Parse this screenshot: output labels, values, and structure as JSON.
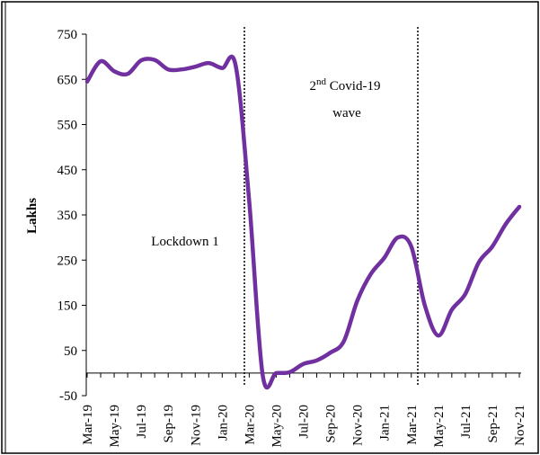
{
  "chart_data": {
    "type": "line",
    "y_label": "Lakhs",
    "categories": [
      "Mar-19",
      null,
      "May-19",
      null,
      "Jul-19",
      null,
      "Sep-19",
      null,
      "Nov-19",
      null,
      "Jan-20",
      null,
      "Mar-20",
      null,
      "May-20",
      null,
      "Jul-20",
      null,
      "Sep-20",
      null,
      "Nov-20",
      null,
      "Jan-21",
      null,
      "Mar-21",
      null,
      "May-21",
      null,
      "Jul-21",
      null,
      "Sep-21",
      null,
      "Nov-21"
    ],
    "series": [
      {
        "name": "Lakhs",
        "color": "#7030a0",
        "values": [
          645,
          690,
          668,
          662,
          692,
          693,
          672,
          672,
          678,
          686,
          675,
          680,
          380,
          -5,
          0,
          2,
          20,
          28,
          45,
          70,
          160,
          219,
          255,
          300,
          280,
          150,
          83,
          140,
          175,
          245,
          280,
          330,
          368
        ]
      }
    ],
    "ylim": [
      -50,
      750
    ],
    "yticks": [
      -50,
      50,
      150,
      250,
      350,
      450,
      550,
      650,
      750
    ],
    "annotations": {
      "lockdown": "Lockdown 1",
      "wave_number": "2",
      "wave_suffix": "nd",
      "wave_text": " Covid-19",
      "wave_line2": "wave"
    }
  }
}
